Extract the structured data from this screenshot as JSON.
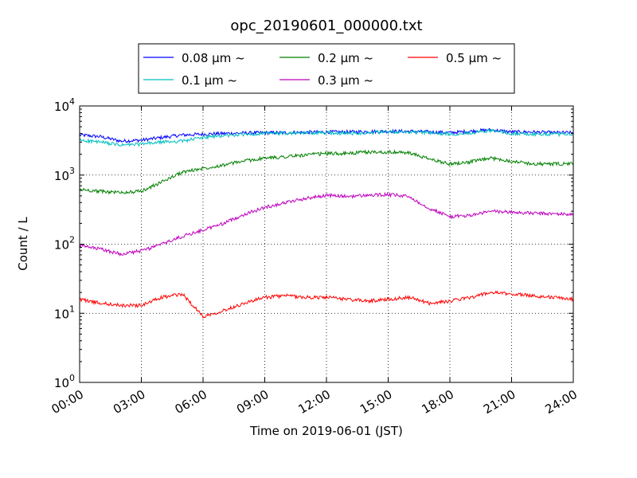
{
  "chart_data": {
    "type": "line",
    "title": "opc_20190601_000000.txt",
    "xlabel": "Time on 2019-06-01 (JST)",
    "ylabel": "Count / L",
    "y_scale": "log",
    "ylim": [
      1,
      10000
    ],
    "xlim": [
      "00:00",
      "24:00"
    ],
    "x_ticks": [
      "00:00",
      "03:00",
      "06:00",
      "09:00",
      "12:00",
      "15:00",
      "18:00",
      "21:00",
      "24:00"
    ],
    "y_ticks": [
      {
        "base": "10",
        "exp": "0",
        "value": 1
      },
      {
        "base": "10",
        "exp": "1",
        "value": 10
      },
      {
        "base": "10",
        "exp": "2",
        "value": 100
      },
      {
        "base": "10",
        "exp": "3",
        "value": 1000
      },
      {
        "base": "10",
        "exp": "4",
        "value": 10000
      }
    ],
    "grid": true,
    "legend_position": "top-center",
    "x": [
      "00:00",
      "01:00",
      "02:00",
      "03:00",
      "04:00",
      "05:00",
      "06:00",
      "07:00",
      "08:00",
      "09:00",
      "10:00",
      "11:00",
      "12:00",
      "13:00",
      "14:00",
      "15:00",
      "16:00",
      "17:00",
      "18:00",
      "19:00",
      "20:00",
      "21:00",
      "22:00",
      "23:00",
      "24:00"
    ],
    "series": [
      {
        "name": "0.08 μm ~",
        "color": "#0000ff",
        "values": [
          3800,
          3600,
          3100,
          3200,
          3500,
          3800,
          3900,
          4000,
          4050,
          4100,
          4100,
          4150,
          4200,
          4200,
          4250,
          4300,
          4300,
          4200,
          4100,
          4300,
          4500,
          4200,
          4200,
          4100,
          4100
        ]
      },
      {
        "name": "0.1 μm ~",
        "color": "#00bfbf",
        "values": [
          3200,
          3000,
          2700,
          2800,
          3000,
          3100,
          3500,
          3700,
          3900,
          4000,
          4000,
          4050,
          4100,
          4000,
          4100,
          4200,
          4200,
          4100,
          3900,
          4100,
          4400,
          4000,
          3900,
          3900,
          3900
        ]
      },
      {
        "name": "0.2 μm ~",
        "color": "#008000",
        "values": [
          620,
          580,
          560,
          580,
          800,
          1100,
          1250,
          1400,
          1600,
          1750,
          1850,
          1950,
          2050,
          2050,
          2150,
          2150,
          2100,
          1700,
          1450,
          1550,
          1750,
          1600,
          1450,
          1450,
          1450
        ]
      },
      {
        "name": "0.3 μm ~",
        "color": "#bf00bf",
        "values": [
          95,
          85,
          72,
          80,
          100,
          130,
          160,
          200,
          270,
          340,
          400,
          460,
          510,
          490,
          510,
          520,
          490,
          330,
          250,
          260,
          300,
          290,
          280,
          275,
          270
        ]
      },
      {
        "name": "0.5 μm ~",
        "color": "#ff0000",
        "values": [
          16,
          14,
          13,
          13,
          17,
          19,
          9,
          11,
          14,
          17,
          18,
          17,
          17,
          16,
          15,
          16,
          17,
          14,
          15,
          17,
          20,
          19,
          18,
          17,
          16
        ]
      }
    ]
  }
}
